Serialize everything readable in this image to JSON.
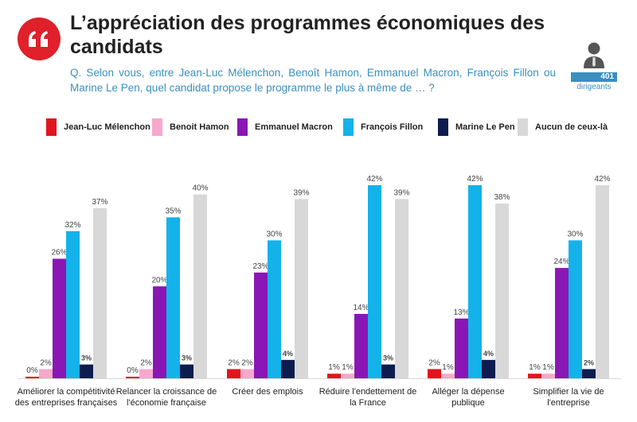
{
  "header": {
    "title": "L’appréciation des programmes économiques des candidats",
    "question": "Q. Selon vous, entre Jean-Luc Mélenchon, Benoît Hamon, Emmanuel Macron, François Fillon ou Marine Le Pen, quel candidat propose le programme le plus à même de … ?",
    "sample_count": "401",
    "sample_label": "dirigeants"
  },
  "colors": {
    "accent_red": "#e0202a",
    "accent_blue": "#3a8fbf"
  },
  "icons": {
    "badge": "quotation-mark-icon",
    "sample": "person-icon"
  },
  "chart_data": {
    "type": "bar",
    "categories": [
      "Améliorer la compétitivité des entreprises françaises",
      "Relancer la croissance de l'économie française",
      "Créer des emplois",
      "Réduire l'endettement de la France",
      "Alléger la dépense publique",
      "Simplifier la vie de l'entreprise"
    ],
    "series": [
      {
        "name": "Jean-Luc Mélenchon",
        "color": "#e3141d",
        "values": [
          0,
          0,
          2,
          1,
          2,
          1
        ]
      },
      {
        "name": "Benoit Hamon",
        "color": "#f7a8cc",
        "values": [
          2,
          2,
          2,
          1,
          1,
          1
        ]
      },
      {
        "name": "Emmanuel Macron",
        "color": "#8a17b5",
        "values": [
          26,
          20,
          23,
          14,
          13,
          24
        ]
      },
      {
        "name": "François Fillon",
        "color": "#13b2ea",
        "values": [
          32,
          35,
          30,
          42,
          42,
          30
        ]
      },
      {
        "name": "Marine Le Pen",
        "color": "#0d1c4e",
        "values": [
          3,
          3,
          4,
          3,
          4,
          2
        ]
      },
      {
        "name": "Aucun de ceux-là",
        "color": "#d8d8d8",
        "values": [
          37,
          40,
          39,
          39,
          38,
          42
        ]
      }
    ],
    "value_suffix": "%",
    "ylim": [
      0,
      42
    ],
    "grid": false,
    "legend_position": "top"
  }
}
